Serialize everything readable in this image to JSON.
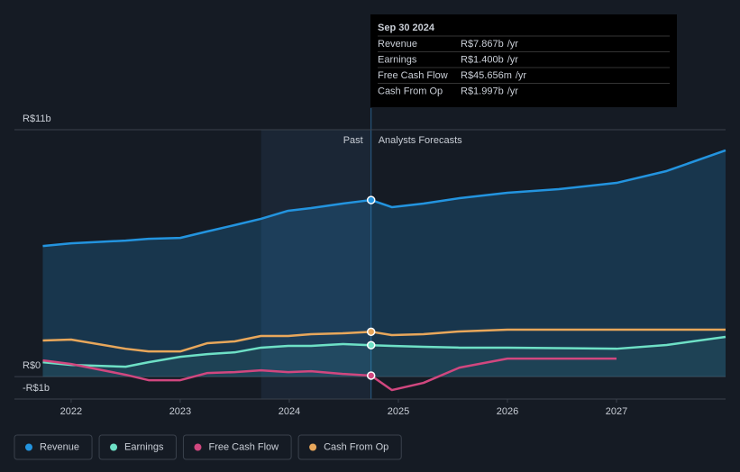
{
  "chart_data": {
    "type": "line",
    "x": [
      2021.74,
      2022,
      2022.5,
      2022.71,
      2023,
      2023.25,
      2023.5,
      2023.74,
      2023.99,
      2024.2,
      2024.49,
      2024.75,
      2024.94,
      2025.23,
      2025.56,
      2026,
      2026.47,
      2027,
      2027.46,
      2028
    ],
    "xlim": [
      2021.48,
      2028
    ],
    "xticks": [
      2022,
      2023,
      2024,
      2025,
      2026,
      2027
    ],
    "ylim": [
      -1,
      11
    ],
    "yticks": [
      {
        "value": -1,
        "label": "-R$1b"
      },
      {
        "value": 0,
        "label": "R$0"
      },
      {
        "value": 11,
        "label": "R$11b"
      }
    ],
    "grid": true,
    "forecast_start": 2024.75,
    "past_label": "Past",
    "forecast_label": "Analysts Forecasts",
    "series": [
      {
        "name": "Revenue",
        "color": "#2394df",
        "values": [
          5.82,
          5.94,
          6.06,
          6.14,
          6.18,
          6.47,
          6.75,
          7.03,
          7.39,
          7.51,
          7.71,
          7.867,
          7.55,
          7.71,
          7.95,
          8.19,
          8.35,
          8.63,
          9.16,
          10.08
        ]
      },
      {
        "name": "Earnings",
        "color": "#6ee0c6",
        "values": [
          0.64,
          0.52,
          0.44,
          0.64,
          0.88,
          1.0,
          1.08,
          1.29,
          1.37,
          1.37,
          1.45,
          1.4,
          1.37,
          1.33,
          1.29,
          1.29,
          1.27,
          1.24,
          1.41,
          1.77
        ]
      },
      {
        "name": "Free Cash Flow",
        "color": "#d1477f",
        "values": [
          0.72,
          0.56,
          0.08,
          -0.16,
          -0.16,
          0.16,
          0.2,
          0.28,
          0.2,
          0.24,
          0.12,
          0.045656,
          -0.6,
          -0.28,
          0.4,
          0.8,
          0.8,
          0.8,
          null,
          null
        ]
      },
      {
        "name": "Cash From Op",
        "color": "#e8a75b",
        "values": [
          1.61,
          1.65,
          1.24,
          1.12,
          1.12,
          1.49,
          1.57,
          1.81,
          1.81,
          1.89,
          1.93,
          1.997,
          1.85,
          1.89,
          2.01,
          2.09,
          2.09,
          2.09,
          2.09,
          2.09
        ]
      }
    ],
    "tooltip": {
      "date": "Sep 30 2024",
      "index": 11,
      "value_labels": [
        "R$7.867b",
        "R$1.400b",
        "R$45.656m",
        "R$1.997b"
      ],
      "suffix": "/yr"
    }
  }
}
